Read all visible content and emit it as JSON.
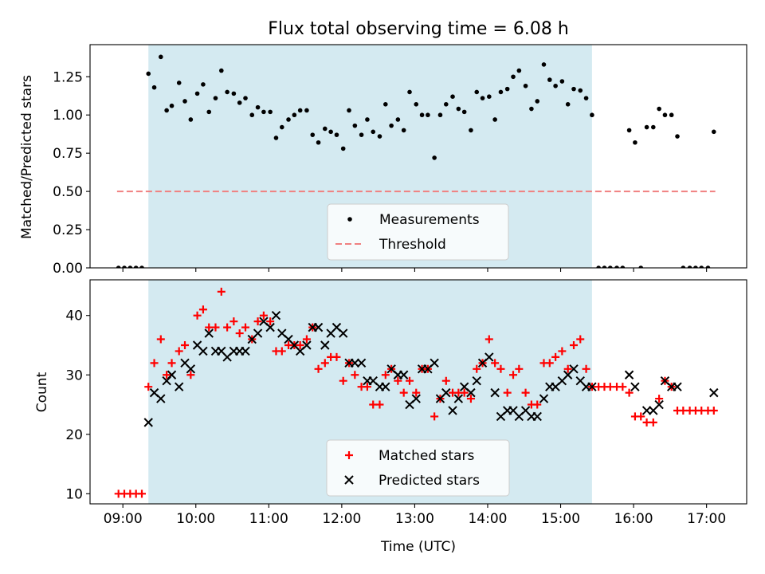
{
  "chart_data": [
    {
      "type": "scatter",
      "title": "Flux total observing time = 6.08 h",
      "xlabel": "",
      "ylabel": "Matched/Predicted stars",
      "xlim": [
        8.55,
        17.55
      ],
      "ylim": [
        0.0,
        1.46
      ],
      "xticks": [
        9,
        10,
        11,
        12,
        13,
        14,
        15,
        16,
        17
      ],
      "yticks": [
        0.0,
        0.25,
        0.5,
        0.75,
        1.0,
        1.25
      ],
      "ytick_labels": [
        "0.00",
        "0.25",
        "0.50",
        "0.75",
        "1.00",
        "1.25"
      ],
      "shaded_span": [
        9.35,
        15.43
      ],
      "shaded_color": "#d4eaf1",
      "threshold": {
        "name": "Threshold",
        "y": 0.5,
        "x_range": [
          8.92,
          17.12
        ],
        "color": "#f08080"
      },
      "legend": {
        "position": "lower-center",
        "entries": [
          "Measurements",
          "Threshold"
        ]
      },
      "series": [
        {
          "name": "Measurements",
          "marker": "dot",
          "color": "#000000",
          "x": [
            8.94,
            9.02,
            9.1,
            9.18,
            9.26,
            9.35,
            9.43,
            9.52,
            9.6,
            9.67,
            9.77,
            9.85,
            9.93,
            10.02,
            10.1,
            10.18,
            10.27,
            10.35,
            10.43,
            10.52,
            10.6,
            10.68,
            10.77,
            10.85,
            10.93,
            11.02,
            11.1,
            11.18,
            11.27,
            11.35,
            11.43,
            11.52,
            11.6,
            11.68,
            11.77,
            11.85,
            11.93,
            12.02,
            12.1,
            12.18,
            12.27,
            12.35,
            12.43,
            12.52,
            12.6,
            12.68,
            12.77,
            12.85,
            12.93,
            13.02,
            13.1,
            13.18,
            13.27,
            13.35,
            13.43,
            13.52,
            13.6,
            13.68,
            13.77,
            13.85,
            13.93,
            14.02,
            14.1,
            14.18,
            14.27,
            14.35,
            14.43,
            14.52,
            14.6,
            14.68,
            14.77,
            14.85,
            14.93,
            15.02,
            15.1,
            15.18,
            15.27,
            15.35,
            15.43,
            15.52,
            15.6,
            15.68,
            15.77,
            15.85,
            15.94,
            16.02,
            16.1,
            16.18,
            16.27,
            16.35,
            16.43,
            16.52,
            16.6,
            16.68,
            16.77,
            16.85,
            16.93,
            17.02,
            17.1
          ],
          "y": [
            0.0,
            0.0,
            0.0,
            0.0,
            0.0,
            1.27,
            1.18,
            1.38,
            1.03,
            1.06,
            1.21,
            1.09,
            0.97,
            1.14,
            1.2,
            1.02,
            1.11,
            1.29,
            1.15,
            1.14,
            1.08,
            1.11,
            1.0,
            1.05,
            1.02,
            1.02,
            0.85,
            0.92,
            0.97,
            1.0,
            1.03,
            1.03,
            0.87,
            0.82,
            0.91,
            0.89,
            0.87,
            0.78,
            1.03,
            0.93,
            0.87,
            0.97,
            0.89,
            0.86,
            1.07,
            0.93,
            0.97,
            0.9,
            1.15,
            1.07,
            1.0,
            1.0,
            0.72,
            1.0,
            1.07,
            1.12,
            1.04,
            1.02,
            0.9,
            1.15,
            1.11,
            1.12,
            0.97,
            1.15,
            1.17,
            1.25,
            1.29,
            1.19,
            1.04,
            1.09,
            1.33,
            1.23,
            1.19,
            1.22,
            1.07,
            1.17,
            1.16,
            1.11,
            1.0,
            0.0,
            0.0,
            0.0,
            0.0,
            0.0,
            0.9,
            0.82,
            0.0,
            0.92,
            0.92,
            1.04,
            1.0,
            1.0,
            0.86,
            0.0,
            0.0,
            0.0,
            0.0,
            0.0,
            0.89
          ]
        }
      ]
    },
    {
      "type": "scatter",
      "title": "",
      "xlabel": "Time (UTC)",
      "ylabel": "Count",
      "xlim": [
        8.55,
        17.55
      ],
      "ylim": [
        8.3,
        46.0
      ],
      "xticks": [
        9,
        10,
        11,
        12,
        13,
        14,
        15,
        16,
        17
      ],
      "xtick_labels": [
        "09:00",
        "10:00",
        "11:00",
        "12:00",
        "13:00",
        "14:00",
        "15:00",
        "16:00",
        "17:00"
      ],
      "yticks": [
        10,
        20,
        30,
        40
      ],
      "ytick_labels": [
        "10",
        "20",
        "30",
        "40"
      ],
      "shaded_span": [
        9.35,
        15.43
      ],
      "shaded_color": "#d4eaf1",
      "legend": {
        "position": "lower-center",
        "entries": [
          "Matched stars",
          "Predicted stars"
        ]
      },
      "series": [
        {
          "name": "Matched stars",
          "marker": "plus",
          "color": "#ff0000",
          "x": [
            8.94,
            9.02,
            9.1,
            9.18,
            9.26,
            9.35,
            9.43,
            9.52,
            9.6,
            9.67,
            9.77,
            9.85,
            9.93,
            10.02,
            10.1,
            10.18,
            10.27,
            10.35,
            10.43,
            10.52,
            10.6,
            10.68,
            10.77,
            10.85,
            10.93,
            11.02,
            11.1,
            11.18,
            11.27,
            11.35,
            11.43,
            11.52,
            11.6,
            11.68,
            11.77,
            11.85,
            11.93,
            12.02,
            12.1,
            12.18,
            12.27,
            12.35,
            12.43,
            12.52,
            12.6,
            12.68,
            12.77,
            12.85,
            12.93,
            13.02,
            13.1,
            13.18,
            13.27,
            13.35,
            13.43,
            13.52,
            13.6,
            13.68,
            13.77,
            13.85,
            13.93,
            14.02,
            14.1,
            14.18,
            14.27,
            14.35,
            14.43,
            14.52,
            14.6,
            14.68,
            14.77,
            14.85,
            14.93,
            15.02,
            15.1,
            15.18,
            15.27,
            15.35,
            15.43,
            15.52,
            15.6,
            15.68,
            15.77,
            15.85,
            15.94,
            16.02,
            16.1,
            16.18,
            16.27,
            16.35,
            16.43,
            16.52,
            16.6,
            16.68,
            16.77,
            16.85,
            16.93,
            17.02,
            17.1
          ],
          "y": [
            10,
            10,
            10,
            10,
            10,
            28,
            32,
            36,
            30,
            32,
            34,
            35,
            30,
            40,
            41,
            38,
            38,
            44,
            38,
            39,
            37,
            38,
            36,
            39,
            40,
            39,
            34,
            34,
            35,
            35,
            35,
            36,
            38,
            31,
            32,
            33,
            33,
            29,
            32,
            30,
            28,
            28,
            25,
            25,
            30,
            31,
            29,
            27,
            29,
            27,
            31,
            31,
            23,
            26,
            29,
            27,
            27,
            27,
            26,
            31,
            32,
            36,
            32,
            31,
            27,
            30,
            31,
            27,
            25,
            25,
            32,
            32,
            33,
            34,
            31,
            35,
            36,
            31,
            28,
            28,
            28,
            28,
            28,
            28,
            27,
            23,
            23,
            22,
            22,
            26,
            29,
            28,
            24,
            24,
            24,
            24,
            24,
            24,
            24
          ]
        },
        {
          "name": "Predicted stars",
          "marker": "x",
          "color": "#000000",
          "x": [
            9.35,
            9.43,
            9.52,
            9.6,
            9.67,
            9.77,
            9.85,
            9.93,
            10.02,
            10.1,
            10.18,
            10.27,
            10.35,
            10.43,
            10.52,
            10.6,
            10.68,
            10.77,
            10.85,
            10.93,
            11.02,
            11.1,
            11.18,
            11.27,
            11.35,
            11.43,
            11.52,
            11.6,
            11.68,
            11.77,
            11.85,
            11.93,
            12.02,
            12.1,
            12.18,
            12.27,
            12.35,
            12.43,
            12.52,
            12.6,
            12.68,
            12.77,
            12.85,
            12.93,
            13.02,
            13.1,
            13.18,
            13.27,
            13.35,
            13.43,
            13.52,
            13.6,
            13.68,
            13.77,
            13.85,
            13.93,
            14.02,
            14.1,
            14.18,
            14.27,
            14.35,
            14.43,
            14.52,
            14.6,
            14.68,
            14.77,
            14.85,
            14.93,
            15.02,
            15.1,
            15.18,
            15.27,
            15.35,
            15.43,
            15.94,
            16.02,
            16.18,
            16.27,
            16.35,
            16.43,
            16.52,
            16.6,
            17.1
          ],
          "y": [
            22,
            27,
            26,
            29,
            30,
            28,
            32,
            31,
            35,
            34,
            37,
            34,
            34,
            33,
            34,
            34,
            34,
            36,
            37,
            39,
            38,
            40,
            37,
            36,
            35,
            34,
            35,
            38,
            38,
            35,
            37,
            38,
            37,
            32,
            32,
            32,
            29,
            29,
            28,
            28,
            31,
            30,
            30,
            25,
            26,
            31,
            31,
            32,
            26,
            27,
            24,
            26,
            28,
            27,
            29,
            32,
            33,
            27,
            23,
            24,
            24,
            23,
            24,
            23,
            23,
            26,
            28,
            28,
            29,
            30,
            31,
            29,
            28,
            28,
            30,
            28,
            24,
            24,
            25,
            29,
            28,
            28,
            27
          ]
        }
      ]
    }
  ]
}
